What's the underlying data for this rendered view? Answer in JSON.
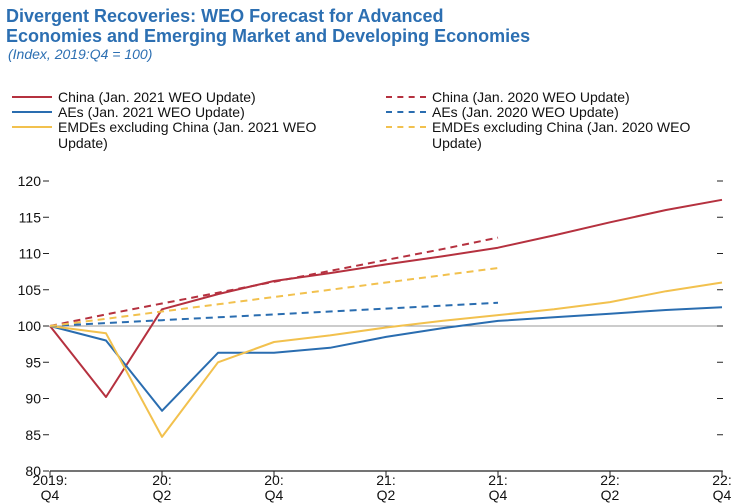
{
  "chart_data": {
    "type": "line",
    "title_line1": "Divergent Recoveries: WEO Forecast for Advanced",
    "title_line2": "Economies and Emerging Market and Developing Economies",
    "subtitle": "(Index, 2019:Q4 = 100)",
    "xlabel": "",
    "ylabel": "",
    "ylim": [
      80,
      120
    ],
    "yticks": [
      80,
      85,
      90,
      95,
      100,
      105,
      110,
      115,
      120
    ],
    "xticks": [
      {
        "top": "2019:",
        "bottom": "Q4"
      },
      {
        "top": "20:",
        "bottom": "Q2"
      },
      {
        "top": "20:",
        "bottom": "Q4"
      },
      {
        "top": "21:",
        "bottom": "Q2"
      },
      {
        "top": "21:",
        "bottom": "Q4"
      },
      {
        "top": "22:",
        "bottom": "Q2"
      },
      {
        "top": "22:",
        "bottom": "Q4"
      }
    ],
    "x_quarters": [
      "2019:Q4",
      "2020:Q1",
      "2020:Q2",
      "2020:Q3",
      "2020:Q4",
      "2021:Q1",
      "2021:Q2",
      "2021:Q3",
      "2021:Q4",
      "2022:Q1",
      "2022:Q2",
      "2022:Q3",
      "2022:Q4"
    ],
    "baseline": 100,
    "legend_placement": "top",
    "series": [
      {
        "name": "China (Jan. 2021 WEO Update)",
        "color": "#b5313f",
        "dash": false,
        "values": [
          100,
          90.2,
          102.3,
          104.4,
          106.2,
          107.3,
          108.5,
          109.6,
          110.8,
          112.5,
          114.3,
          116.0,
          117.4
        ]
      },
      {
        "name": "AEs (Jan. 2021 WEO Update)",
        "color": "#2a6db0",
        "dash": false,
        "values": [
          100,
          98.0,
          88.3,
          96.3,
          96.3,
          97.0,
          98.5,
          99.7,
          100.7,
          101.2,
          101.7,
          102.2,
          102.6
        ]
      },
      {
        "name": "EMDEs excluding China (Jan. 2021 WEO Update)",
        "color": "#f2c14e",
        "dash": false,
        "values": [
          100,
          99.0,
          84.7,
          95.0,
          97.8,
          98.7,
          99.8,
          100.7,
          101.5,
          102.3,
          103.3,
          104.8,
          106.0
        ]
      },
      {
        "name": "China (Jan. 2020 WEO Update)",
        "color": "#b5313f",
        "dash": true,
        "values": [
          100,
          101.6,
          103.1,
          104.6,
          106.1,
          107.6,
          109.1,
          110.6,
          112.2,
          null,
          null,
          null,
          null
        ]
      },
      {
        "name": "AEs (Jan. 2020 WEO Update)",
        "color": "#2a6db0",
        "dash": true,
        "values": [
          100,
          100.4,
          100.8,
          101.2,
          101.6,
          102.0,
          102.4,
          102.8,
          103.2,
          null,
          null,
          null,
          null
        ]
      },
      {
        "name": "EMDEs excluding China (Jan. 2020 WEO Update)",
        "color": "#f2c14e",
        "dash": true,
        "values": [
          100,
          101.0,
          102.0,
          103.0,
          104.0,
          105.0,
          106.0,
          107.0,
          108.0,
          null,
          null,
          null,
          null
        ]
      }
    ]
  }
}
